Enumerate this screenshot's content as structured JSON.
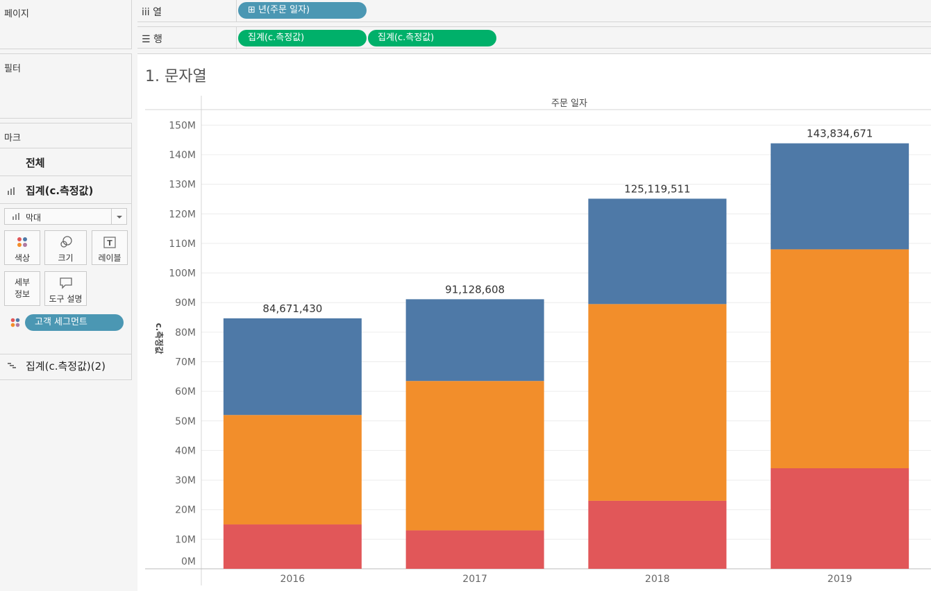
{
  "panels": {
    "pages_title": "페이지",
    "filters_title": "필터",
    "marks_title": "마크"
  },
  "marks": {
    "all_label": "전체",
    "measure1_label": "집계(c.측정값)",
    "measure2_label": "집계(c.측정값)(2)",
    "mark_type": "막대",
    "buttons": {
      "color": "색상",
      "size": "크기",
      "label": "레이블",
      "detail_line1": "세부",
      "detail_line2": "정보",
      "tooltip": "도구 설명"
    },
    "color_pill": "고객 세그먼트",
    "label_icon_glyph": "T"
  },
  "shelves": {
    "columns_icon": "iii",
    "columns_label": "열",
    "columns_pill": "⊞ 년(주문 일자)",
    "rows_icon": "☰",
    "rows_label": "행",
    "rows_pills": [
      "집계(c.측정값)",
      "집계(c.측정값)"
    ]
  },
  "viz": {
    "title": "1. 문자열"
  },
  "colors": {
    "accent_blue_pill": "#4b97b3",
    "accent_green_pill": "#00b06a",
    "segment_bottom": "#e15759",
    "segment_middle": "#f28e2b",
    "segment_top": "#4e79a7"
  },
  "chart_data": {
    "type": "bar",
    "stacked": true,
    "header": "주문 일자",
    "ylabel": "c.측정값",
    "ylim": [
      0,
      155000000
    ],
    "y_ticks": [
      0,
      10000000,
      20000000,
      30000000,
      40000000,
      50000000,
      60000000,
      70000000,
      80000000,
      90000000,
      100000000,
      110000000,
      120000000,
      130000000,
      140000000,
      150000000
    ],
    "y_tick_labels": [
      "0M",
      "10M",
      "20M",
      "30M",
      "40M",
      "50M",
      "60M",
      "70M",
      "80M",
      "90M",
      "100M",
      "110M",
      "120M",
      "130M",
      "140M",
      "150M"
    ],
    "categories": [
      "2016",
      "2017",
      "2018",
      "2019"
    ],
    "series": [
      {
        "color": "#e15759",
        "values": [
          15000000,
          13000000,
          23000000,
          34000000
        ]
      },
      {
        "color": "#f28e2b",
        "values": [
          37000000,
          50500000,
          66500000,
          74000000
        ]
      },
      {
        "color": "#4e79a7",
        "values": [
          32671430,
          27628608,
          35619511,
          35834671
        ]
      }
    ],
    "totals": [
      84671430,
      91128608,
      125119511,
      143834671
    ],
    "total_labels": [
      "84,671,430",
      "91,128,608",
      "125,119,511",
      "143,834,671"
    ],
    "grid": true,
    "legend": "none"
  }
}
